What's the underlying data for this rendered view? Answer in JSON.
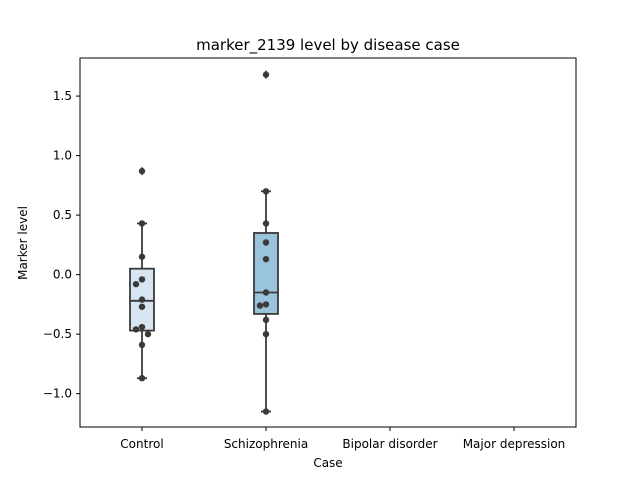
{
  "chart_data": {
    "type": "box",
    "title": "marker_2139 level by disease case",
    "xlabel": "Case",
    "ylabel": "Marker level",
    "categories": [
      "Control",
      "Schizophrenia",
      "Bipolar disorder",
      "Major depression"
    ],
    "ylim": [
      -1.28,
      1.82
    ],
    "yticks": [
      -1.0,
      -0.5,
      0.0,
      0.5,
      1.0,
      1.5
    ],
    "ytick_labels": [
      "−1.0",
      "−0.5",
      "0.0",
      "0.5",
      "1.0",
      "1.5"
    ],
    "grid": false,
    "boxes": [
      {
        "category": "Control",
        "color": "#d7e4f1",
        "q1": -0.47,
        "median": -0.22,
        "q3": 0.05,
        "whisker_low": -0.87,
        "whisker_high": 0.43,
        "outliers": [
          0.87
        ],
        "points": [
          0.87,
          0.43,
          0.15,
          -0.04,
          -0.08,
          -0.21,
          -0.27,
          -0.44,
          -0.46,
          -0.5,
          -0.59,
          -0.87
        ]
      },
      {
        "category": "Schizophrenia",
        "color": "#9ac3dc",
        "q1": -0.33,
        "median": -0.15,
        "q3": 0.35,
        "whisker_low": -1.15,
        "whisker_high": 0.7,
        "outliers": [
          1.68
        ],
        "points": [
          1.68,
          0.7,
          0.43,
          0.27,
          0.13,
          -0.15,
          -0.25,
          -0.26,
          -0.38,
          -0.5,
          -1.15
        ]
      }
    ]
  }
}
